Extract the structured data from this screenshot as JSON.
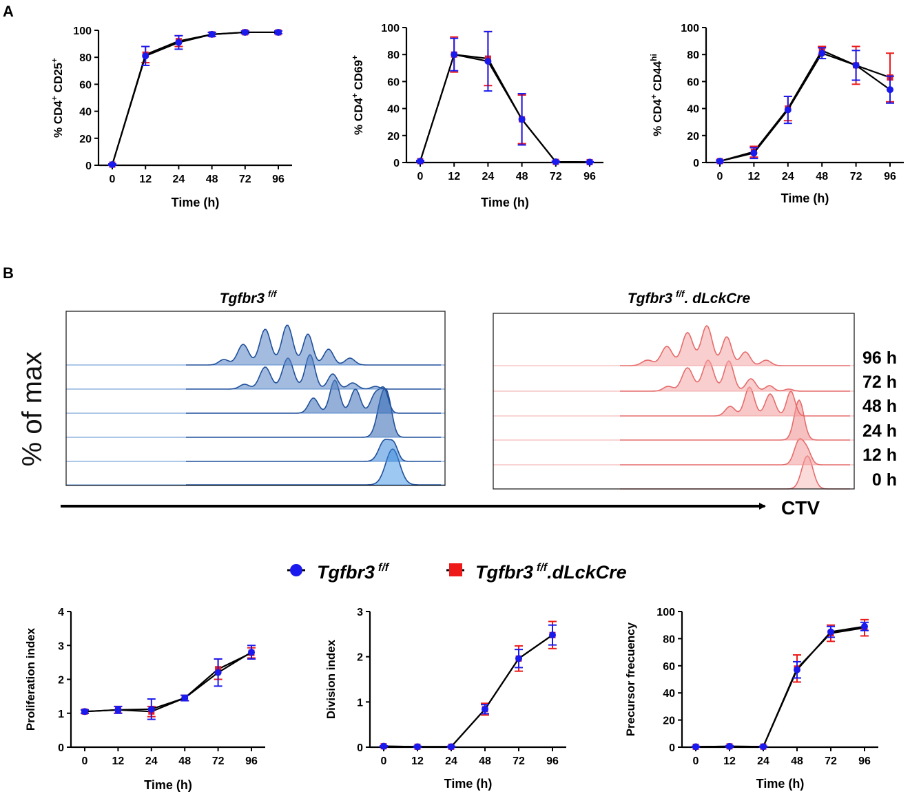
{
  "panels": {
    "a": "A",
    "b": "B"
  },
  "flow": {
    "groups": [
      {
        "title": "Tgfbr3",
        "sup": "f/f",
        "suffix": "",
        "color": "#1f5fae"
      },
      {
        "title": "Tgfbr3",
        "sup": "f/f",
        "suffix": ". dLckCre",
        "color": "#ef6b6b"
      }
    ],
    "timepoints": [
      "96 h",
      "72 h",
      "48 h",
      "24 h",
      "12 h",
      "0 h"
    ],
    "ylabel": "% of max",
    "xlabel": "CTV"
  },
  "legend": {
    "ff_label": "Tgfbr3",
    "ff_sup": "f/f",
    "ff_suffix": "",
    "cre_label": "Tgfbr3",
    "cre_sup": "f/f",
    "cre_suffix": ".dLckCre"
  },
  "chart_data": [
    {
      "type": "line",
      "id": "cd25",
      "ylabel_parts": [
        [
          "% CD4",
          ""
        ],
        [
          "+",
          "sup"
        ],
        [
          " CD25",
          ""
        ],
        [
          "+",
          "sup"
        ]
      ],
      "xlabel": "Time (h)",
      "categories": [
        "0",
        "12",
        "24",
        "48",
        "72",
        "96"
      ],
      "ylim": [
        0,
        100
      ],
      "yticks": [
        0,
        20,
        40,
        60,
        80,
        100
      ],
      "series": [
        {
          "name": "Tgfbr3 f/f",
          "color": "#1a1aee",
          "marker": "circle",
          "values": [
            0.5,
            81,
            91,
            97,
            98.5,
            98.5
          ],
          "err": [
            0.5,
            7,
            5,
            1.5,
            1,
            1
          ]
        },
        {
          "name": "Tgfbr3 f/f.dLckCre",
          "color": "#ee1a1a",
          "marker": "square",
          "values": [
            0.5,
            82,
            92,
            97,
            98.5,
            98.5
          ],
          "err": [
            0.5,
            6,
            4,
            1.5,
            1,
            1
          ]
        }
      ]
    },
    {
      "type": "line",
      "id": "cd69",
      "ylabel_parts": [
        [
          "% CD4",
          ""
        ],
        [
          "+",
          "sup"
        ],
        [
          " CD69",
          ""
        ],
        [
          "+",
          "sup"
        ]
      ],
      "xlabel": "Time (h)",
      "categories": [
        "0",
        "12",
        "24",
        "48",
        "72",
        "96"
      ],
      "ylim": [
        0,
        100
      ],
      "yticks": [
        0,
        20,
        40,
        60,
        80,
        100
      ],
      "series": [
        {
          "name": "Tgfbr3 f/f",
          "color": "#1a1aee",
          "marker": "circle",
          "values": [
            1,
            80,
            75,
            32,
            0.5,
            0.3
          ],
          "err": [
            0.5,
            12,
            22,
            19,
            0.5,
            0.3
          ]
        },
        {
          "name": "Tgfbr3 f/f.dLckCre",
          "color": "#ee1a1a",
          "marker": "square",
          "values": [
            1,
            80,
            77,
            32,
            0.5,
            0.3
          ],
          "err": [
            0.5,
            13,
            20,
            18,
            0.5,
            0.3
          ]
        }
      ]
    },
    {
      "type": "line",
      "id": "cd44",
      "ylabel_parts": [
        [
          "% CD4",
          ""
        ],
        [
          "+",
          "sup"
        ],
        [
          " CD44",
          ""
        ],
        [
          "hi",
          "sup"
        ]
      ],
      "xlabel": "Time (h)",
      "categories": [
        "0",
        "12",
        "24",
        "48",
        "72",
        "96"
      ],
      "ylim": [
        0,
        100
      ],
      "yticks": [
        0,
        20,
        40,
        60,
        80,
        100
      ],
      "series": [
        {
          "name": "Tgfbr3 f/f",
          "color": "#1a1aee",
          "marker": "circle",
          "values": [
            1,
            7,
            39,
            81,
            72,
            54
          ],
          "err": [
            0.8,
            4,
            10,
            4,
            11,
            10
          ]
        },
        {
          "name": "Tgfbr3 f/f.dLckCre",
          "color": "#ee1a1a",
          "marker": "square",
          "values": [
            1,
            8,
            40,
            83,
            72,
            63
          ],
          "err": [
            0.8,
            4,
            9,
            3,
            14,
            18
          ]
        }
      ]
    },
    {
      "type": "line",
      "id": "prolif",
      "ylabel_parts": [
        [
          "Proliferation index",
          ""
        ]
      ],
      "xlabel": "Time (h)",
      "categories": [
        "0",
        "12",
        "24",
        "48",
        "72",
        "96"
      ],
      "ylim": [
        0,
        4
      ],
      "yticks": [
        0,
        1,
        2,
        3,
        4
      ],
      "series": [
        {
          "name": "Tgfbr3 f/f",
          "color": "#1a1aee",
          "marker": "circle",
          "values": [
            1.05,
            1.1,
            1.12,
            1.45,
            2.2,
            2.8
          ],
          "err": [
            0.05,
            0.1,
            0.3,
            0.08,
            0.4,
            0.2
          ]
        },
        {
          "name": "Tgfbr3 f/f.dLckCre",
          "color": "#ee1a1a",
          "marker": "square",
          "values": [
            1.05,
            1.1,
            1.05,
            1.45,
            2.3,
            2.78
          ],
          "err": [
            0.05,
            0.1,
            0.15,
            0.08,
            0.3,
            0.15
          ]
        }
      ]
    },
    {
      "type": "line",
      "id": "division",
      "ylabel_parts": [
        [
          "Division index",
          ""
        ]
      ],
      "xlabel": "Time (h)",
      "categories": [
        "0",
        "12",
        "24",
        "48",
        "72",
        "96"
      ],
      "ylim": [
        0,
        3
      ],
      "yticks": [
        0,
        1,
        2,
        3
      ],
      "series": [
        {
          "name": "Tgfbr3 f/f",
          "color": "#1a1aee",
          "marker": "circle",
          "values": [
            0.02,
            0.01,
            0.01,
            0.84,
            1.96,
            2.48
          ],
          "err": [
            0.01,
            0.01,
            0.01,
            0.1,
            0.2,
            0.22
          ]
        },
        {
          "name": "Tgfbr3 f/f.dLckCre",
          "color": "#ee1a1a",
          "marker": "square",
          "values": [
            0.02,
            0.01,
            0.01,
            0.84,
            1.96,
            2.48
          ],
          "err": [
            0.01,
            0.01,
            0.01,
            0.13,
            0.28,
            0.3
          ]
        }
      ]
    },
    {
      "type": "line",
      "id": "precursor",
      "ylabel_parts": [
        [
          "Precursor frecuency",
          ""
        ]
      ],
      "xlabel": "Time (h)",
      "categories": [
        "0",
        "12",
        "24",
        "48",
        "72",
        "96"
      ],
      "ylim": [
        0,
        100
      ],
      "yticks": [
        0,
        20,
        40,
        60,
        80,
        100
      ],
      "series": [
        {
          "name": "Tgfbr3 f/f",
          "color": "#1a1aee",
          "marker": "circle",
          "values": [
            0.3,
            0.6,
            0.4,
            57,
            85,
            89
          ],
          "err": [
            0.3,
            0.5,
            0.3,
            6,
            4,
            3
          ]
        },
        {
          "name": "Tgfbr3 f/f.dLckCre",
          "color": "#ee1a1a",
          "marker": "square",
          "values": [
            0.3,
            0.6,
            0.4,
            58,
            84,
            88
          ],
          "err": [
            0.3,
            0.5,
            0.3,
            10,
            6,
            6
          ]
        }
      ]
    }
  ]
}
